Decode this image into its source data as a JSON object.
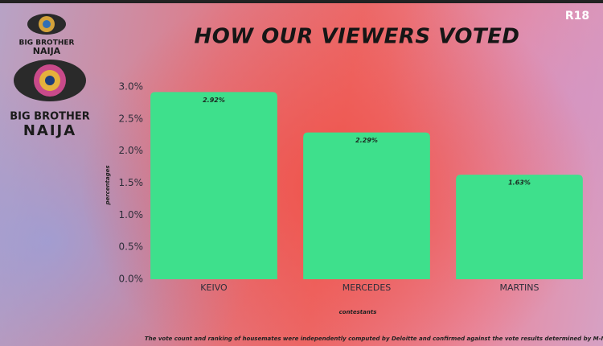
{
  "badge": "R18",
  "logo_top": [
    "BIG BROTHER",
    "NAIJA"
  ],
  "logo_main": [
    "BIG BROTHER",
    "NAIJA"
  ],
  "chart_data": {
    "type": "bar",
    "title": "HOW OUR VIEWERS VOTED",
    "x_label": "contestants",
    "y_label": "percentages",
    "note": "The vote count and ranking of housemates were independently computed by Deloitte and confirmed against the vote results determined by M-Net.",
    "categories": [
      "KEIVO",
      "MERCEDES",
      "MARTINS"
    ],
    "values": [
      2.92,
      2.29,
      1.63
    ],
    "value_labels": [
      "2.92%",
      "2.29%",
      "1.63%"
    ],
    "color": "#3ee08c",
    "ylim": [
      0,
      3
    ],
    "yticks": [
      {
        "value": 0,
        "label": "0.0%"
      },
      {
        "value": 0.5,
        "label": "0.5%"
      },
      {
        "value": 1,
        "label": "1.0%"
      },
      {
        "value": 1.5,
        "label": "1.5%"
      },
      {
        "value": 2,
        "label": "2.0%"
      },
      {
        "value": 2.5,
        "label": "2.5%"
      },
      {
        "value": 3,
        "label": "3.0%"
      }
    ],
    "grid": false
  }
}
